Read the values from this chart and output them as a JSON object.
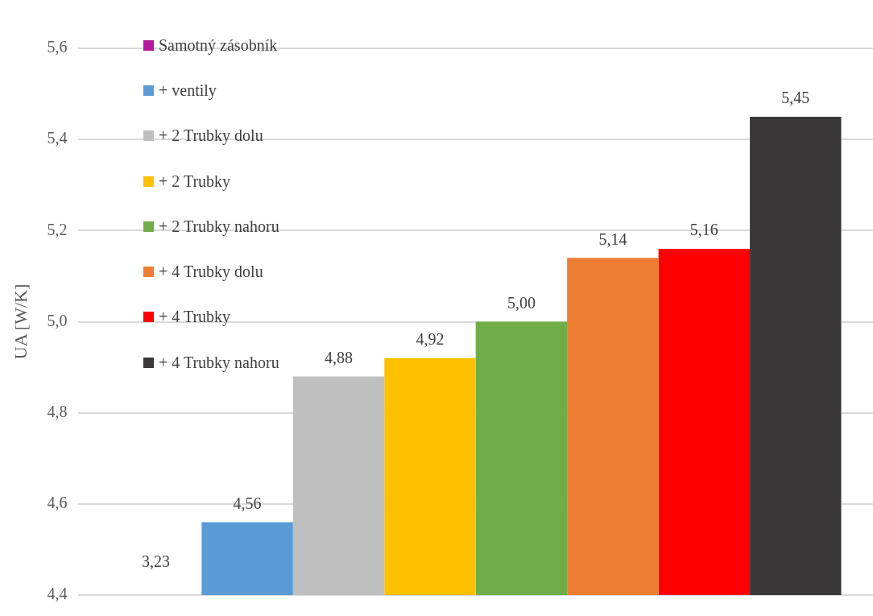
{
  "chart_data": {
    "type": "bar",
    "ylabel": "UA [W/K]",
    "categories": [
      null
    ],
    "series": [
      {
        "name": "Samotný zásobník",
        "color": "#b4199f",
        "values": [
          null
        ]
      },
      {
        "name": "+ ventily",
        "color": "#5b9bd5",
        "values": [
          4.56
        ],
        "value_labels": [
          "4,56"
        ]
      },
      {
        "name": "+ 2 Trubky dolu",
        "color": "#bfbfbf",
        "values": [
          4.88
        ],
        "value_labels": [
          "4,88"
        ]
      },
      {
        "name": "+ 2 Trubky",
        "color": "#ffc000",
        "values": [
          4.92
        ],
        "value_labels": [
          "4,92"
        ]
      },
      {
        "name": "+ 2 Trubky nahoru",
        "color": "#70ad47",
        "values": [
          5.0
        ],
        "value_labels": [
          "5,00"
        ]
      },
      {
        "name": "+ 4 Trubky dolu",
        "color": "#ed7d31",
        "values": [
          5.14
        ],
        "value_labels": [
          "5,14"
        ]
      },
      {
        "name": "+ 4 Trubky",
        "color": "#ff0000",
        "values": [
          5.16
        ],
        "value_labels": [
          "5,16"
        ]
      },
      {
        "name": "+ 4 Trubky nahoru",
        "color": "#3a3838",
        "values": [
          5.45
        ],
        "value_labels": [
          "5,45"
        ]
      }
    ],
    "ylim": [
      4.4,
      5.6
    ],
    "yticks": [
      {
        "value": 4.4,
        "label": "4,4"
      },
      {
        "value": 4.6,
        "label": "4,6"
      },
      {
        "value": 4.8,
        "label": "4,8"
      },
      {
        "value": 5.0,
        "label": "5,0"
      },
      {
        "value": 5.2,
        "label": "5,2"
      },
      {
        "value": 5.4,
        "label": "5,4"
      },
      {
        "value": 5.6,
        "label": "5,6"
      }
    ],
    "grid": "y",
    "legend": "top left",
    "annotations": [
      "3,23"
    ]
  }
}
